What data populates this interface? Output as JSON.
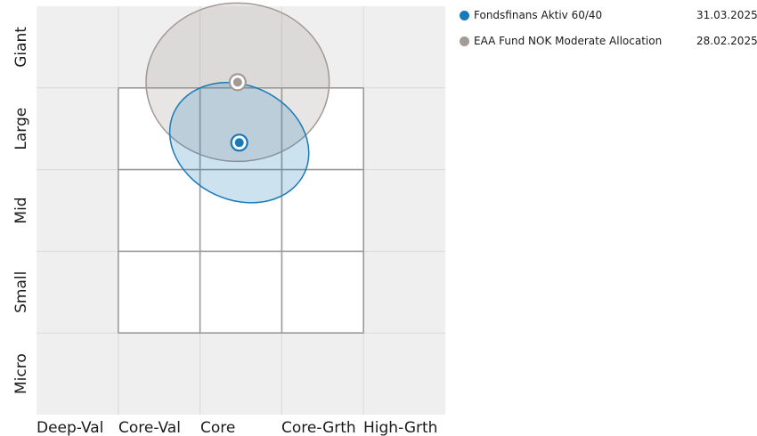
{
  "chart_data": {
    "type": "scatter",
    "title": "",
    "x_categories": [
      "Deep-Val",
      "Core-Val",
      "Core",
      "Core-Grth",
      "High-Grth"
    ],
    "y_categories": [
      "Micro",
      "Small",
      "Mid",
      "Large",
      "Giant"
    ],
    "xlim": [
      -2.5,
      2.5
    ],
    "ylim": [
      -2.5,
      2.5
    ],
    "grid": true,
    "legend_position": "top-right",
    "style_box": {
      "x": [
        -1.5,
        1.5
      ],
      "y": [
        -1.5,
        1.5
      ]
    },
    "series": [
      {
        "name": "Fondsfinans Aktiv 60/40",
        "date": "31.03.2025",
        "color": "#1a7ab8",
        "centroid": {
          "x": -0.02,
          "y": 0.83
        },
        "ellipse": {
          "rx": 0.88,
          "ry": 0.7,
          "angle": 25
        }
      },
      {
        "name": "EAA Fund NOK Moderate Allocation",
        "date": "28.02.2025",
        "color": "#a39a96",
        "centroid": {
          "x": -0.04,
          "y": 1.57
        },
        "ellipse": {
          "rx": 1.12,
          "ry": 0.97,
          "angle": 0
        }
      }
    ]
  }
}
